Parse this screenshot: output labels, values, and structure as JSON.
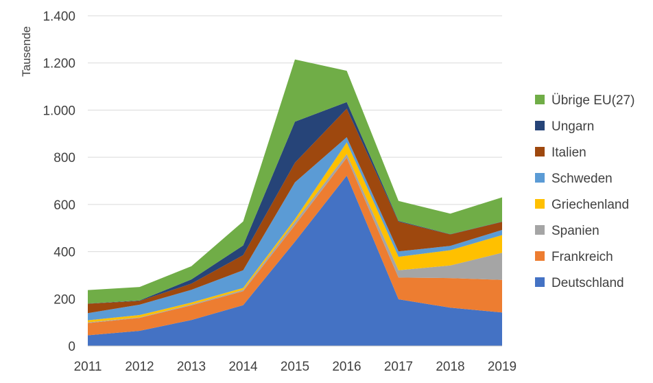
{
  "chart_data": {
    "type": "area",
    "stacked": true,
    "title": "",
    "xlabel": "",
    "ylabel": "Tausende",
    "ylim": [
      0,
      1400
    ],
    "yticks": [
      0,
      200,
      400,
      600,
      800,
      1000,
      1200,
      1400
    ],
    "ytick_labels": [
      "0",
      "200",
      "400",
      "600",
      "800",
      "1.000",
      "1.200",
      "1.400"
    ],
    "grid": "horizontal",
    "legend_position": "right",
    "categories": [
      "2011",
      "2012",
      "2013",
      "2014",
      "2015",
      "2016",
      "2017",
      "2018",
      "2019"
    ],
    "series": [
      {
        "name": "Deutschland",
        "color": "#4472C4",
        "values": [
          45,
          64,
          110,
          173,
          442,
          722,
          198,
          162,
          142
        ]
      },
      {
        "name": "Frankreich",
        "color": "#ED7D31",
        "values": [
          52,
          55,
          62,
          59,
          70,
          76,
          92,
          126,
          138
        ]
      },
      {
        "name": "Spanien",
        "color": "#A5A5A5",
        "values": [
          3,
          2,
          4,
          6,
          15,
          16,
          31,
          53,
          115
        ]
      },
      {
        "name": "Griechenland",
        "color": "#FFC000",
        "values": [
          9,
          10,
          8,
          8,
          11,
          49,
          57,
          65,
          75
        ]
      },
      {
        "name": "Schweden",
        "color": "#5B9BD5",
        "values": [
          30,
          44,
          54,
          75,
          156,
          22,
          23,
          18,
          22
        ]
      },
      {
        "name": "Italien",
        "color": "#9E480E",
        "values": [
          40,
          16,
          26,
          64,
          83,
          121,
          126,
          49,
          34
        ]
      },
      {
        "name": "Ungarn",
        "color": "#264478",
        "values": [
          1,
          2,
          18,
          41,
          174,
          28,
          3,
          1,
          1
        ]
      },
      {
        "name": "Übrige EU(27)",
        "color": "#70AD47",
        "values": [
          57,
          57,
          56,
          102,
          264,
          133,
          85,
          87,
          103
        ]
      }
    ]
  }
}
